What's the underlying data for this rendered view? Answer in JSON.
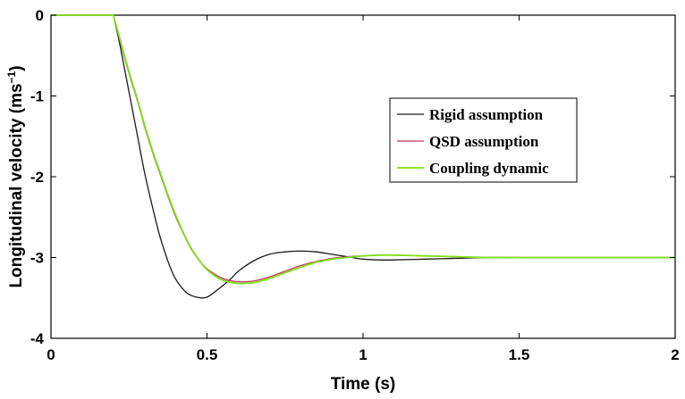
{
  "chart_data": {
    "type": "line",
    "title": "",
    "xlabel": "Time (s)",
    "ylabel": "Longitudinal velocity (ms",
    "ylabel_sup": "−1",
    "ylabel_close": ")",
    "xlim": [
      0,
      2
    ],
    "ylim": [
      -4,
      0
    ],
    "xticks": [
      0,
      0.5,
      1,
      1.5,
      2
    ],
    "xtick_labels": [
      "0",
      "0.5",
      "1",
      "1.5",
      "2"
    ],
    "yticks": [
      0,
      -1,
      -2,
      -3,
      -4
    ],
    "ytick_labels": [
      "0",
      "-1",
      "-2",
      "-3",
      "-4"
    ],
    "grid": false,
    "legend_position": "right-center",
    "series": [
      {
        "name": "Rigid assumption",
        "color": "#1a1a1a",
        "x": [
          0,
          0.2,
          0.22,
          0.25,
          0.28,
          0.3,
          0.33,
          0.35,
          0.38,
          0.4,
          0.43,
          0.45,
          0.48,
          0.5,
          0.52,
          0.55,
          0.58,
          0.6,
          0.65,
          0.7,
          0.75,
          0.8,
          0.85,
          0.9,
          0.95,
          1.0,
          1.05,
          1.1,
          1.2,
          1.3,
          1.4,
          1.5,
          1.6,
          1.8,
          2.0
        ],
        "y": [
          0,
          0,
          -0.35,
          -0.95,
          -1.55,
          -1.95,
          -2.45,
          -2.75,
          -3.1,
          -3.27,
          -3.42,
          -3.47,
          -3.5,
          -3.49,
          -3.44,
          -3.35,
          -3.25,
          -3.17,
          -3.04,
          -2.96,
          -2.93,
          -2.92,
          -2.93,
          -2.96,
          -2.99,
          -3.02,
          -3.03,
          -3.03,
          -3.02,
          -3.01,
          -3.0,
          -3.0,
          -3.0,
          -3.0,
          -3.0
        ]
      },
      {
        "name": "QSD assumption",
        "color": "#c0395a",
        "x": [
          0,
          0.2,
          0.22,
          0.25,
          0.28,
          0.3,
          0.33,
          0.35,
          0.38,
          0.4,
          0.43,
          0.45,
          0.48,
          0.5,
          0.53,
          0.55,
          0.58,
          0.6,
          0.62,
          0.65,
          0.7,
          0.75,
          0.8,
          0.85,
          0.9,
          0.95,
          1.0,
          1.05,
          1.1,
          1.2,
          1.3,
          1.4,
          1.5,
          1.7,
          2.0
        ],
        "y": [
          0,
          0,
          -0.3,
          -0.72,
          -1.1,
          -1.38,
          -1.75,
          -1.97,
          -2.3,
          -2.5,
          -2.75,
          -2.9,
          -3.06,
          -3.14,
          -3.22,
          -3.26,
          -3.29,
          -3.3,
          -3.3,
          -3.29,
          -3.24,
          -3.17,
          -3.1,
          -3.05,
          -3.01,
          -2.99,
          -2.98,
          -2.97,
          -2.97,
          -2.98,
          -2.99,
          -3.0,
          -3.0,
          -3.0,
          -3.0
        ]
      },
      {
        "name": "Coupling dynamic",
        "color": "#7fe01a",
        "x": [
          0,
          0.2,
          0.22,
          0.25,
          0.28,
          0.3,
          0.33,
          0.35,
          0.38,
          0.4,
          0.43,
          0.45,
          0.48,
          0.5,
          0.53,
          0.55,
          0.58,
          0.6,
          0.62,
          0.65,
          0.7,
          0.75,
          0.8,
          0.85,
          0.9,
          0.95,
          1.0,
          1.05,
          1.1,
          1.2,
          1.3,
          1.4,
          1.5,
          1.7,
          2.0
        ],
        "y": [
          0,
          0,
          -0.28,
          -0.7,
          -1.08,
          -1.36,
          -1.73,
          -1.95,
          -2.28,
          -2.48,
          -2.74,
          -2.89,
          -3.06,
          -3.15,
          -3.24,
          -3.28,
          -3.31,
          -3.32,
          -3.32,
          -3.31,
          -3.26,
          -3.19,
          -3.12,
          -3.06,
          -3.02,
          -3.0,
          -2.98,
          -2.97,
          -2.97,
          -2.98,
          -2.99,
          -3.0,
          -3.0,
          -3.0,
          -3.0
        ]
      }
    ]
  }
}
